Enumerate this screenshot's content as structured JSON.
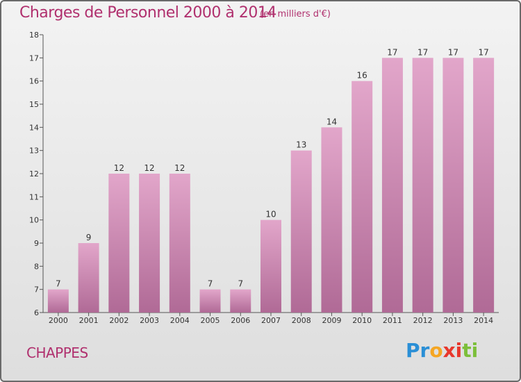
{
  "header": {
    "title": "Charges de Personnel 2000 à 2014",
    "subtitle": "(en milliers d'€)"
  },
  "footer": {
    "city": "CHAPPES",
    "logo_letters": [
      "P",
      "r",
      "o",
      "x",
      "i",
      "t",
      "i"
    ],
    "logo_colors": [
      "#2a8fd6",
      "#2a8fd6",
      "#f5a623",
      "#e8372c",
      "#e8372c",
      "#7cbf3a",
      "#7cbf3a"
    ]
  },
  "chart_data": {
    "type": "bar",
    "categories": [
      "2000",
      "2001",
      "2002",
      "2003",
      "2004",
      "2005",
      "2006",
      "2007",
      "2008",
      "2009",
      "2010",
      "2011",
      "2012",
      "2013",
      "2014"
    ],
    "values": [
      7,
      9,
      12,
      12,
      12,
      7,
      7,
      10,
      13,
      14,
      16,
      17,
      17,
      17,
      17
    ],
    "ylim": [
      6,
      18
    ],
    "yticks": [
      6,
      7,
      8,
      9,
      10,
      11,
      12,
      13,
      14,
      15,
      16,
      17,
      18
    ],
    "grid": false,
    "bar_color_top": "#e2a6ca",
    "bar_color_bottom": "#b06a96",
    "xlabel": "",
    "ylabel": ""
  }
}
